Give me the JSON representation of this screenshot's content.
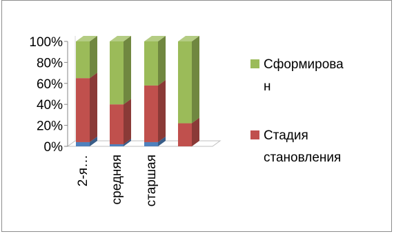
{
  "chart_data": {
    "type": "bar",
    "stacked": "percent",
    "view": "3d",
    "categories": [
      "2-я…",
      "средняя",
      "старшая",
      ""
    ],
    "series": [
      {
        "name": "",
        "color": "#4f81bd",
        "values": [
          4,
          2,
          4,
          0
        ]
      },
      {
        "name": "Стадия становления",
        "color": "#c0504d",
        "values": [
          61,
          38,
          54,
          22
        ]
      },
      {
        "name": "Сформирован",
        "color": "#9bbb59",
        "values": [
          35,
          60,
          42,
          78
        ]
      }
    ],
    "ylim": [
      0,
      100
    ],
    "y_ticks": [
      "0%",
      "20%",
      "40%",
      "60%",
      "80%",
      "100%"
    ],
    "grid": false,
    "legend": {
      "position": "right",
      "entries": [
        {
          "series": "Сформирован",
          "lines": [
            "Сформирова",
            "н"
          ],
          "color": "#9bbb59"
        },
        {
          "series": "Стадия становления",
          "lines": [
            "Стадия",
            "становления"
          ],
          "color": "#c0504d"
        }
      ]
    },
    "title": "",
    "xlabel": "",
    "ylabel": ""
  }
}
